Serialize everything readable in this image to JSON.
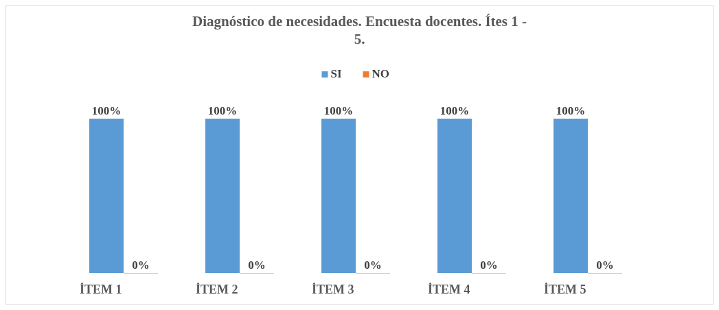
{
  "chart_data": {
    "type": "bar",
    "title": "Diagnóstico de necesidades. Encuesta docentes. Ítes 1 - 5.",
    "categories": [
      "İTEM 1",
      "İTEM 2",
      "İTEM 3",
      "İTEM 4",
      "İTEM 5"
    ],
    "series": [
      {
        "name": "SI",
        "color": "#5b9bd5",
        "values": [
          100,
          100,
          100,
          100,
          100
        ],
        "value_labels": [
          "100%",
          "100%",
          "100%",
          "100%",
          "100%"
        ]
      },
      {
        "name": "NO",
        "color": "#ed7d31",
        "values": [
          0,
          0,
          0,
          0,
          0
        ],
        "value_labels": [
          "0%",
          "0%",
          "0%",
          "0%",
          "0%"
        ]
      }
    ],
    "legend": "top"
  }
}
